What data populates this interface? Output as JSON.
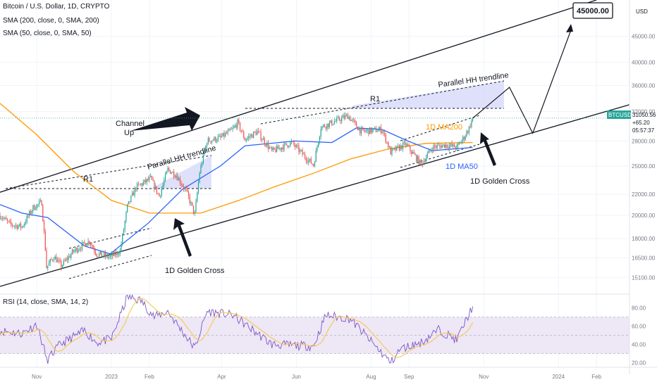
{
  "header": {
    "symbol_line": "Bitcoin / U.S. Dollar, 1D, CRYPTO",
    "sma200_line": "SMA (200, close, 0, SMA, 200)",
    "sma50_line": "SMA (50, close, 0, SMA, 50)",
    "rsi_line": "RSI (14, close, SMA, 14, 2)"
  },
  "price_axis": {
    "currency": "USD",
    "ticks": [
      "45000.00",
      "40000.00",
      "36000.00",
      "32000.00",
      "28000.00",
      "25000.00",
      "22000.00",
      "20000.00",
      "18000.00",
      "16500.00",
      "15100.00"
    ]
  },
  "rsi_axis": {
    "ticks": [
      "80.00",
      "60.00",
      "40.00",
      "20.00"
    ]
  },
  "time_axis": {
    "labels": [
      "Nov",
      "2023",
      "Feb",
      "Apr",
      "Jun",
      "Aug",
      "Sep",
      "Nov",
      "2024",
      "Feb"
    ]
  },
  "last_price": {
    "symbol": "BTCUSD",
    "price": "31050.56",
    "change": "+65.20",
    "countdown": "05:57:37"
  },
  "target_box": "45000.00",
  "colors": {
    "up": "#26a69a",
    "down": "#ef5350",
    "sma200": "#ff9800",
    "sma50": "#2962ff",
    "rsi": "#7e57c2",
    "rsi_ma": "#f7c948",
    "rsi_band": "#ede7f6",
    "price_badge": "#26a69a",
    "projection": "#d1d4f9"
  },
  "annotations": {
    "channel_up": [
      "Channel",
      "Up"
    ],
    "r1_left": "R1",
    "r1_right": "R1",
    "parallel_hh_left": "Parallel HH trendline",
    "parallel_hh_right": "Parallel HH trendline",
    "golden_cross_left": "1D Golden Cross",
    "golden_cross_right": "1D Golden Cross",
    "ma200_label": "1D MA200",
    "ma50_label": "1D MA50"
  },
  "chart_data": {
    "type": "candlestick",
    "title": "Bitcoin / U.S. Dollar, 1D, CRYPTO",
    "y_scale": "log",
    "ylim": [
      14000,
      53000
    ],
    "rsi_ylim": [
      15,
      95
    ],
    "x_range": [
      "2022-10-02",
      "2024-02-28"
    ],
    "price_path": [
      [
        "2022-10-02",
        20000
      ],
      [
        "2022-10-10",
        19200
      ],
      [
        "2022-10-20",
        19000
      ],
      [
        "2022-10-29",
        20700
      ],
      [
        "2022-11-05",
        21200
      ],
      [
        "2022-11-08",
        17200
      ],
      [
        "2022-11-09",
        15800
      ],
      [
        "2022-11-15",
        16600
      ],
      [
        "2022-11-21",
        15900
      ],
      [
        "2022-12-01",
        17000
      ],
      [
        "2022-12-14",
        17800
      ],
      [
        "2022-12-20",
        16800
      ],
      [
        "2022-12-31",
        16550
      ],
      [
        "2023-01-08",
        17000
      ],
      [
        "2023-01-14",
        20800
      ],
      [
        "2023-01-21",
        22700
      ],
      [
        "2023-02-02",
        23600
      ],
      [
        "2023-02-09",
        21800
      ],
      [
        "2023-02-16",
        24600
      ],
      [
        "2023-02-23",
        24000
      ],
      [
        "2023-03-03",
        22300
      ],
      [
        "2023-03-10",
        20100
      ],
      [
        "2023-03-14",
        24300
      ],
      [
        "2023-03-20",
        28000
      ],
      [
        "2023-03-31",
        28400
      ],
      [
        "2023-04-10",
        29500
      ],
      [
        "2023-04-14",
        30400
      ],
      [
        "2023-04-20",
        28200
      ],
      [
        "2023-04-30",
        29200
      ],
      [
        "2023-05-12",
        26700
      ],
      [
        "2023-05-28",
        27800
      ],
      [
        "2023-06-10",
        25800
      ],
      [
        "2023-06-15",
        25100
      ],
      [
        "2023-06-21",
        29800
      ],
      [
        "2023-06-30",
        30400
      ],
      [
        "2023-07-13",
        31400
      ],
      [
        "2023-07-24",
        29200
      ],
      [
        "2023-08-10",
        29500
      ],
      [
        "2023-08-17",
        26600
      ],
      [
        "2023-08-29",
        27600
      ],
      [
        "2023-09-11",
        25200
      ],
      [
        "2023-09-20",
        27200
      ],
      [
        "2023-10-01",
        27500
      ],
      [
        "2023-10-10",
        27200
      ],
      [
        "2023-10-16",
        28500
      ],
      [
        "2023-10-20",
        29700
      ],
      [
        "2023-10-23",
        31050
      ]
    ],
    "sma200": [
      [
        "2022-10-02",
        33200
      ],
      [
        "2022-11-01",
        28800
      ],
      [
        "2022-12-01",
        24400
      ],
      [
        "2023-01-01",
        21400
      ],
      [
        "2023-02-01",
        20200
      ],
      [
        "2023-03-15",
        20200
      ],
      [
        "2023-04-15",
        21400
      ],
      [
        "2023-05-15",
        22800
      ],
      [
        "2023-06-15",
        24200
      ],
      [
        "2023-07-15",
        25800
      ],
      [
        "2023-08-15",
        27000
      ],
      [
        "2023-09-15",
        27700
      ],
      [
        "2023-10-23",
        27800
      ]
    ],
    "sma50": [
      [
        "2022-10-02",
        21000
      ],
      [
        "2022-10-20",
        20200
      ],
      [
        "2022-11-10",
        19800
      ],
      [
        "2022-12-10",
        17400
      ],
      [
        "2022-12-31",
        16800
      ],
      [
        "2023-01-31",
        19300
      ],
      [
        "2023-02-28",
        22500
      ],
      [
        "2023-03-31",
        25000
      ],
      [
        "2023-04-20",
        27400
      ],
      [
        "2023-05-31",
        28000
      ],
      [
        "2023-06-30",
        27800
      ],
      [
        "2023-07-20",
        29700
      ],
      [
        "2023-08-10",
        29500
      ],
      [
        "2023-08-31",
        28000
      ],
      [
        "2023-09-20",
        26800
      ],
      [
        "2023-10-23",
        27200
      ]
    ],
    "rsi": [
      [
        "2022-10-02",
        55
      ],
      [
        "2022-10-20",
        52
      ],
      [
        "2022-11-01",
        62
      ],
      [
        "2022-11-08",
        30
      ],
      [
        "2022-11-09",
        22
      ],
      [
        "2022-11-20",
        40
      ],
      [
        "2022-12-10",
        55
      ],
      [
        "2022-12-20",
        42
      ],
      [
        "2023-01-01",
        46
      ],
      [
        "2023-01-14",
        92
      ],
      [
        "2023-01-25",
        88
      ],
      [
        "2023-02-05",
        70
      ],
      [
        "2023-02-16",
        76
      ],
      [
        "2023-03-10",
        36
      ],
      [
        "2023-03-20",
        76
      ],
      [
        "2023-04-10",
        72
      ],
      [
        "2023-05-12",
        40
      ],
      [
        "2023-06-15",
        38
      ],
      [
        "2023-06-25",
        72
      ],
      [
        "2023-07-15",
        68
      ],
      [
        "2023-08-17",
        20
      ],
      [
        "2023-08-25",
        35
      ],
      [
        "2023-09-11",
        42
      ],
      [
        "2023-09-25",
        56
      ],
      [
        "2023-10-10",
        45
      ],
      [
        "2023-10-23",
        82
      ]
    ],
    "drawings": {
      "channel_upper": [
        [
          "2022-10-02",
          22200
        ],
        [
          "2024-02-01",
          53000
        ]
      ],
      "channel_lower": [
        [
          "2022-10-02",
          14500
        ],
        [
          "2024-02-28",
          33000
        ]
      ],
      "projection_path": [
        [
          "2023-10-23",
          31050
        ],
        [
          "2023-11-22",
          35700
        ],
        [
          "2023-12-11",
          29000
        ],
        [
          "2024-01-12",
          46800
        ]
      ]
    }
  }
}
